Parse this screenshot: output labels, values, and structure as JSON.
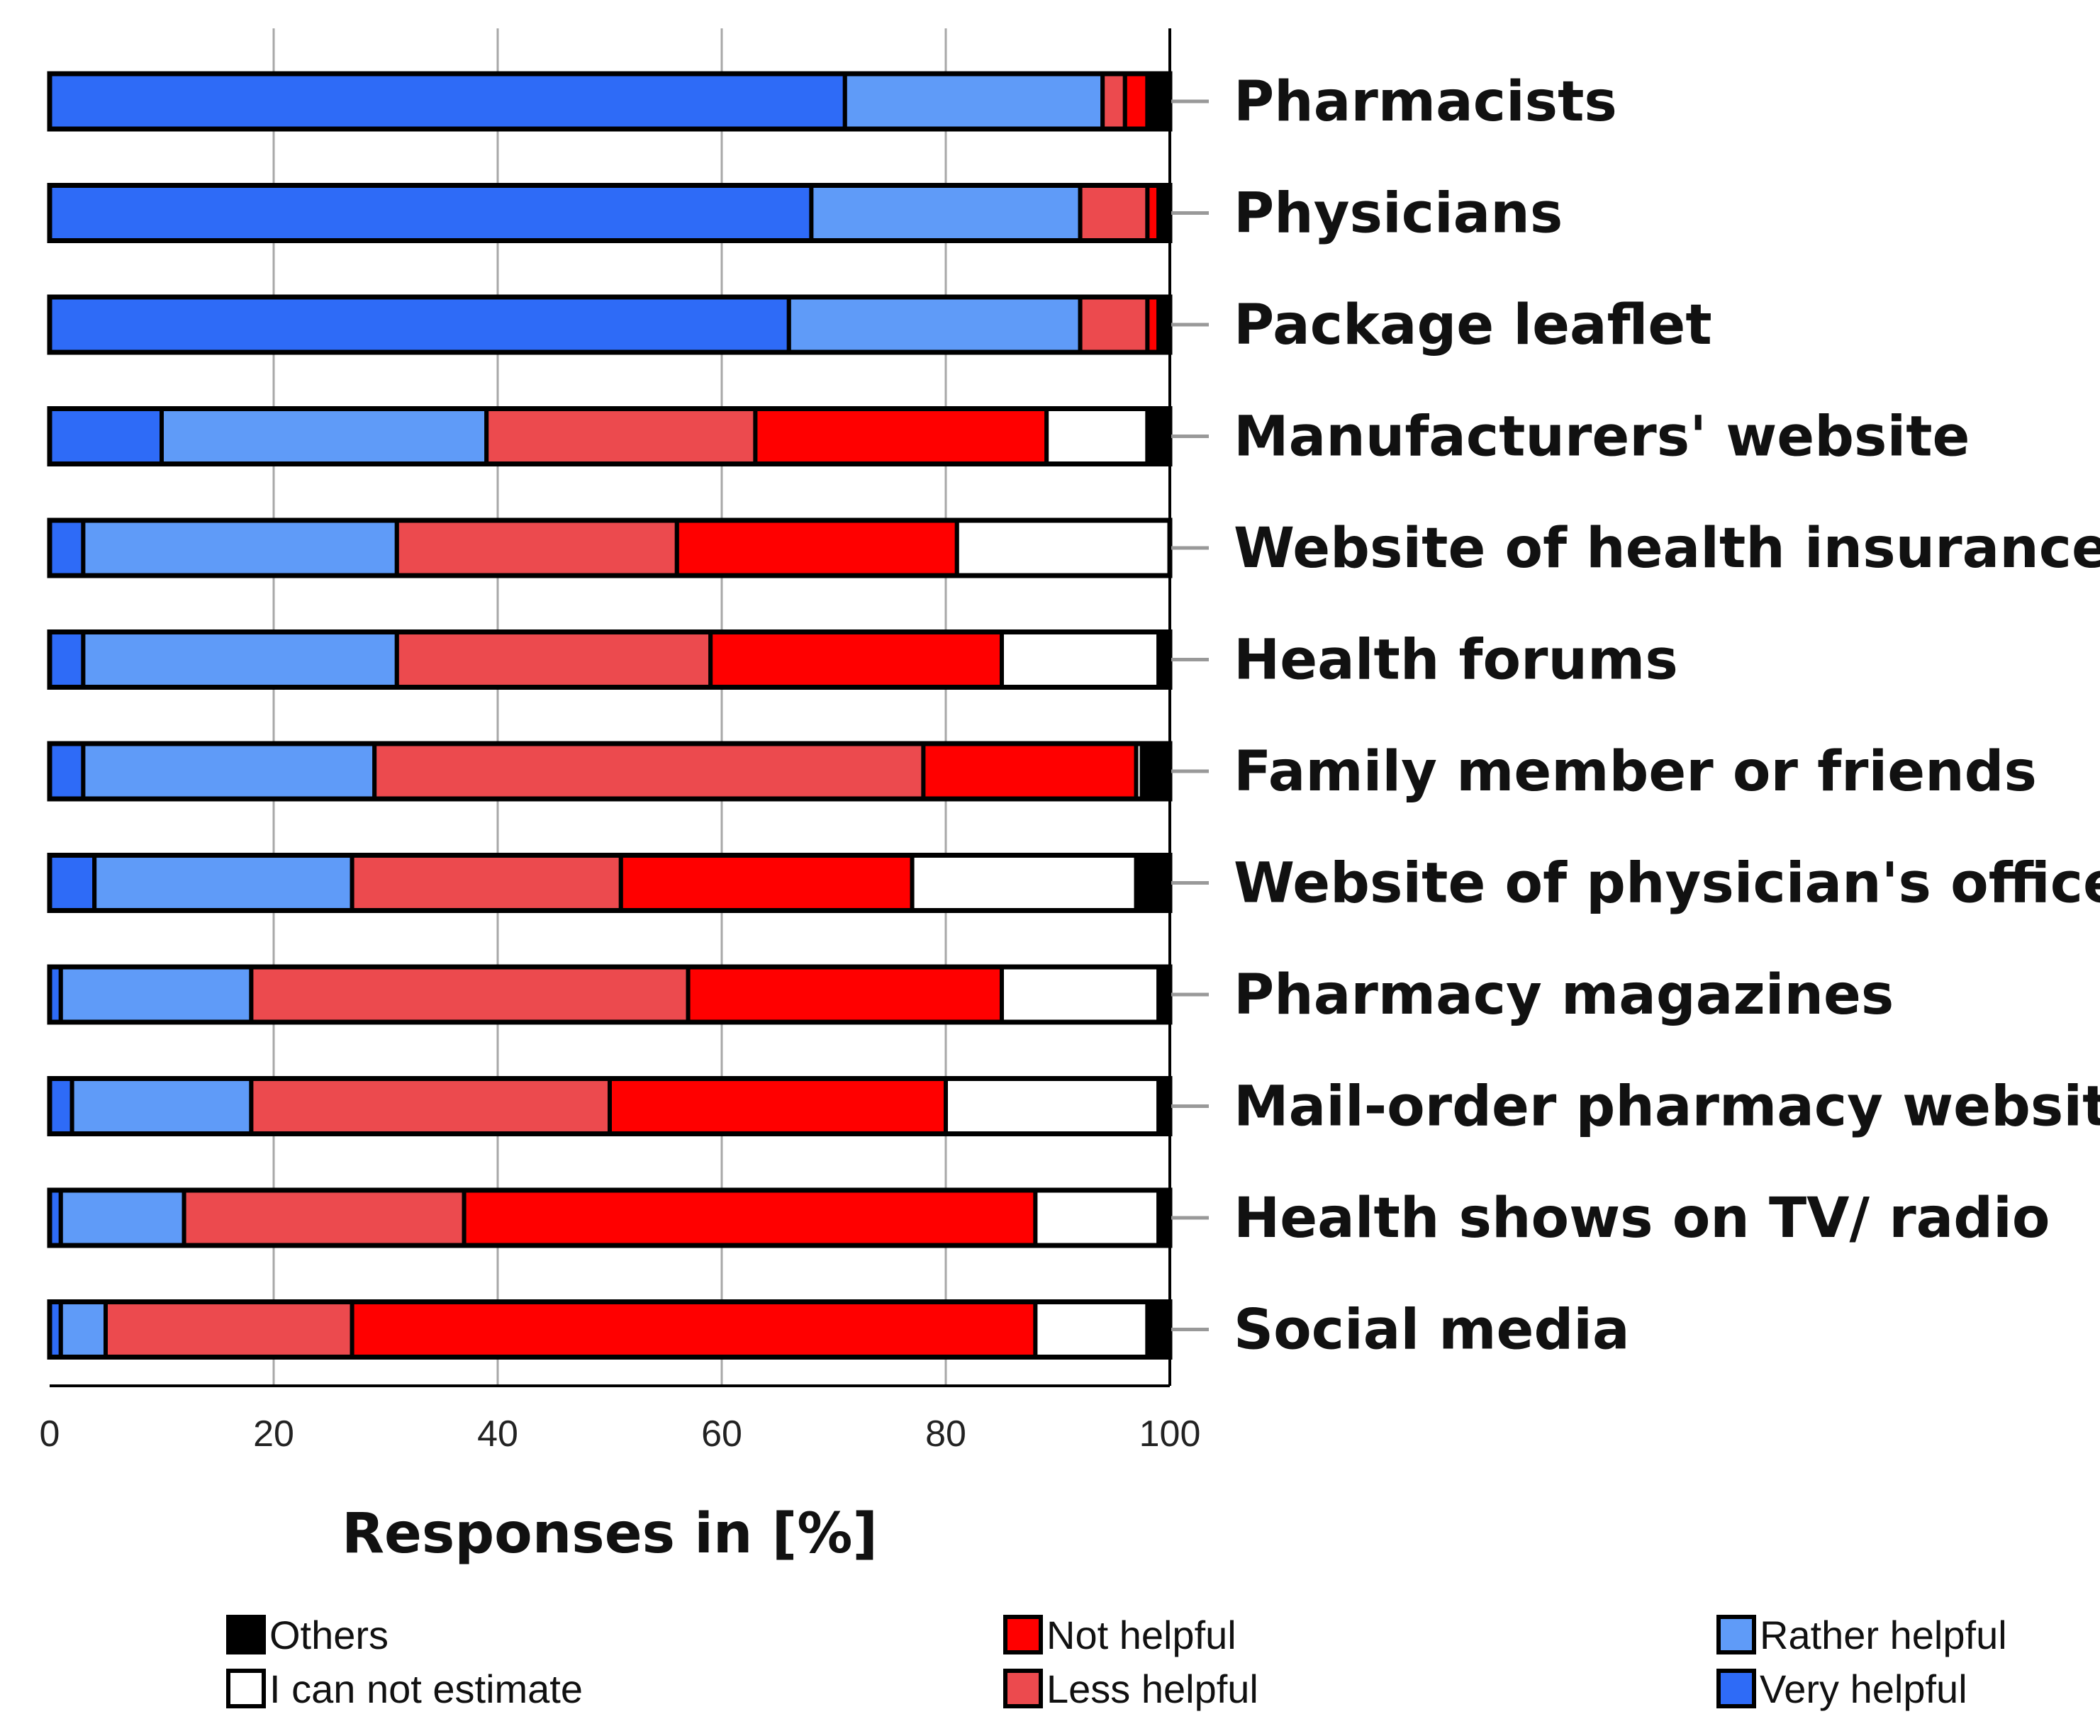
{
  "chart_data": {
    "type": "bar",
    "orientation": "horizontal",
    "stacked": true,
    "title": "",
    "xlabel": "Responses in [%]",
    "ylabel": "",
    "xlim": [
      0,
      100
    ],
    "x_ticks": [
      0,
      20,
      40,
      60,
      80,
      100
    ],
    "grid": true,
    "legend_position": "bottom",
    "categories": [
      "Pharmacists",
      "Physicians",
      "Package leaflet",
      "Manufacturers' website",
      "Website of health insurance",
      "Health forums",
      "Family member or friends",
      "Website of physician's office",
      "Pharmacy magazines",
      "Mail-order pharmacy website",
      "Health shows on TV/ radio",
      "Social media"
    ],
    "series": [
      {
        "name": "Very helpful",
        "color": "#2E6BF7",
        "values": [
          71,
          68,
          66,
          10,
          3,
          3,
          3,
          4,
          1,
          2,
          1,
          1
        ]
      },
      {
        "name": "Rather helpful",
        "color": "#5F9BF8",
        "values": [
          23,
          24,
          26,
          29,
          28,
          28,
          26,
          23,
          17,
          16,
          11,
          4
        ]
      },
      {
        "name": "Less helpful",
        "color": "#EC4A4E",
        "values": [
          2,
          6,
          6,
          24,
          25,
          28,
          49,
          24,
          39,
          32,
          25,
          22
        ]
      },
      {
        "name": "Not helpful",
        "color": "#FF0000",
        "values": [
          2,
          1,
          1,
          26,
          25,
          26,
          19,
          26,
          28,
          30,
          51,
          61
        ]
      },
      {
        "name": "I can not estimate",
        "color": "#FFFFFF",
        "values": [
          0,
          0,
          0,
          9,
          19,
          14,
          0.5,
          20,
          14,
          19,
          11,
          10
        ]
      },
      {
        "name": "Others",
        "color": "#000000",
        "values": [
          2,
          1,
          1,
          2,
          0,
          1,
          2.5,
          3,
          1,
          1,
          1,
          2
        ]
      }
    ],
    "legend": {
      "items": [
        {
          "name": "Others",
          "color": "#000000"
        },
        {
          "name": "I can not estimate",
          "color": "#FFFFFF"
        },
        {
          "name": "Not helpful",
          "color": "#FF0000"
        },
        {
          "name": "Less helpful",
          "color": "#EC4A4E"
        },
        {
          "name": "Rather helpful",
          "color": "#5F9BF8"
        },
        {
          "name": "Very helpful",
          "color": "#2E6BF7"
        }
      ]
    }
  }
}
